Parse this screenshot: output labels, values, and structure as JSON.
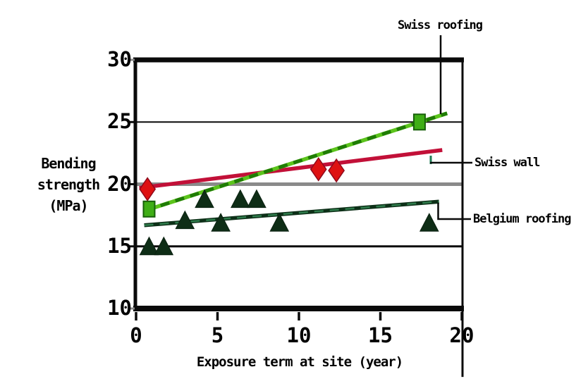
{
  "chart_data": {
    "type": "scatter",
    "title": "",
    "xlabel": "Exposure term at site (year)",
    "ylabel": "Bending strength (MPa)",
    "ylabel_lines": [
      "Bending",
      "strength",
      "(MPa)"
    ],
    "xlim": [
      0,
      20
    ],
    "ylim": [
      10,
      30
    ],
    "xticks": [
      0,
      5,
      10,
      15,
      20
    ],
    "yticks": [
      30,
      25,
      20,
      15,
      10
    ],
    "grid": {
      "horizontal_lines": [
        {
          "y": 25,
          "color": "#0a0a0a",
          "width": 2
        },
        {
          "y": 20,
          "color": "#8a8a8a",
          "width": 5
        },
        {
          "y": 15,
          "color": "#0a0a0a",
          "width": 3
        }
      ]
    },
    "axis_color": "#0a0a0a",
    "background_color": "#ffffff",
    "legend_position": "outside-right-annotations",
    "series": [
      {
        "name": "Belgium roofing",
        "marker": "triangle",
        "marker_color": "#0e2d16",
        "marker_edge": "#0a2110",
        "line_color": "#0d3018",
        "line_dash_color": "#2f7c4c",
        "points": [
          [
            0.8,
            15.0
          ],
          [
            1.7,
            15.0
          ],
          [
            3.0,
            17.1
          ],
          [
            4.2,
            18.8
          ],
          [
            5.2,
            16.9
          ],
          [
            6.4,
            18.8
          ],
          [
            7.4,
            18.8
          ],
          [
            8.8,
            16.9
          ],
          [
            18.0,
            16.9
          ]
        ],
        "trend": {
          "x1": 0.5,
          "y1": 16.7,
          "x2": 18.6,
          "y2": 18.6
        }
      },
      {
        "name": "Swiss wall",
        "marker": "diamond",
        "marker_color": "#de1112",
        "marker_edge": "#8e0a1c",
        "line_color": "#c21038",
        "line_dash_color": "",
        "points": [
          [
            0.7,
            19.6
          ],
          [
            11.2,
            21.2
          ],
          [
            12.3,
            21.1
          ]
        ],
        "trend": {
          "x1": 0.2,
          "y1": 19.7,
          "x2": 18.8,
          "y2": 22.75
        }
      },
      {
        "name": "Swiss roofing",
        "marker": "square",
        "marker_color": "#3fae16",
        "marker_edge": "#18600a",
        "line_color": "#5cc41c",
        "line_dash_color": "#1f7c04",
        "points": [
          [
            0.8,
            18.0
          ],
          [
            17.4,
            25.0
          ]
        ],
        "trend": {
          "x1": 0.6,
          "y1": 17.9,
          "x2": 19.1,
          "y2": 25.7
        }
      }
    ]
  }
}
